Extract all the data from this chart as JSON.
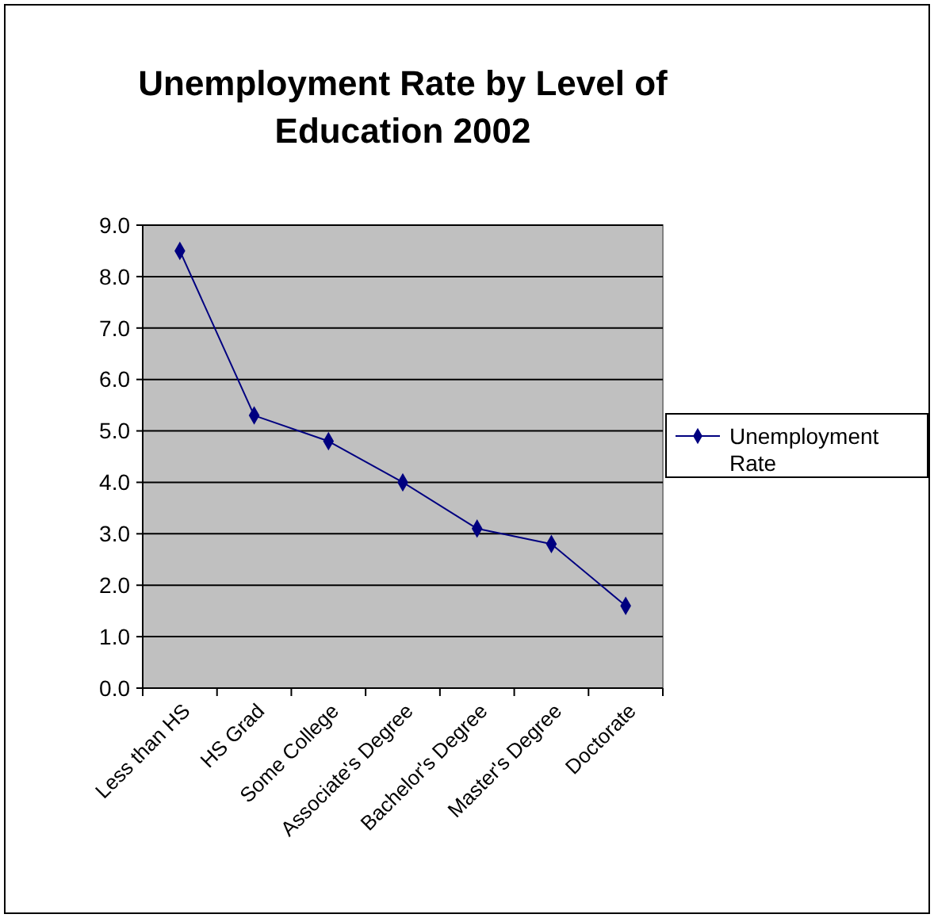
{
  "chart_data": {
    "type": "line",
    "title": "Unemployment Rate by Level of Education 2002",
    "categories": [
      "Less than HS",
      "HS Grad",
      "Some College",
      "Associate's Degree",
      "Bachelor's Degree",
      "Master's Degree",
      "Doctorate"
    ],
    "series": [
      {
        "name": "Unemployment Rate",
        "color": "#000080",
        "values": [
          8.5,
          5.3,
          4.8,
          4.0,
          3.1,
          2.8,
          1.6
        ]
      }
    ],
    "ylim": [
      0,
      9
    ],
    "yticks": [
      {
        "value": 0,
        "label": "0.0"
      },
      {
        "value": 1,
        "label": "1.0"
      },
      {
        "value": 2,
        "label": "2.0"
      },
      {
        "value": 3,
        "label": "3.0"
      },
      {
        "value": 4,
        "label": "4.0"
      },
      {
        "value": 5,
        "label": "5.0"
      },
      {
        "value": 6,
        "label": "6.0"
      },
      {
        "value": 7,
        "label": "7.0"
      },
      {
        "value": 8,
        "label": "8.0"
      },
      {
        "value": 9,
        "label": "9.0"
      }
    ],
    "grid": "y",
    "legend": "right",
    "marker": "diamond",
    "line_style": "solid"
  }
}
